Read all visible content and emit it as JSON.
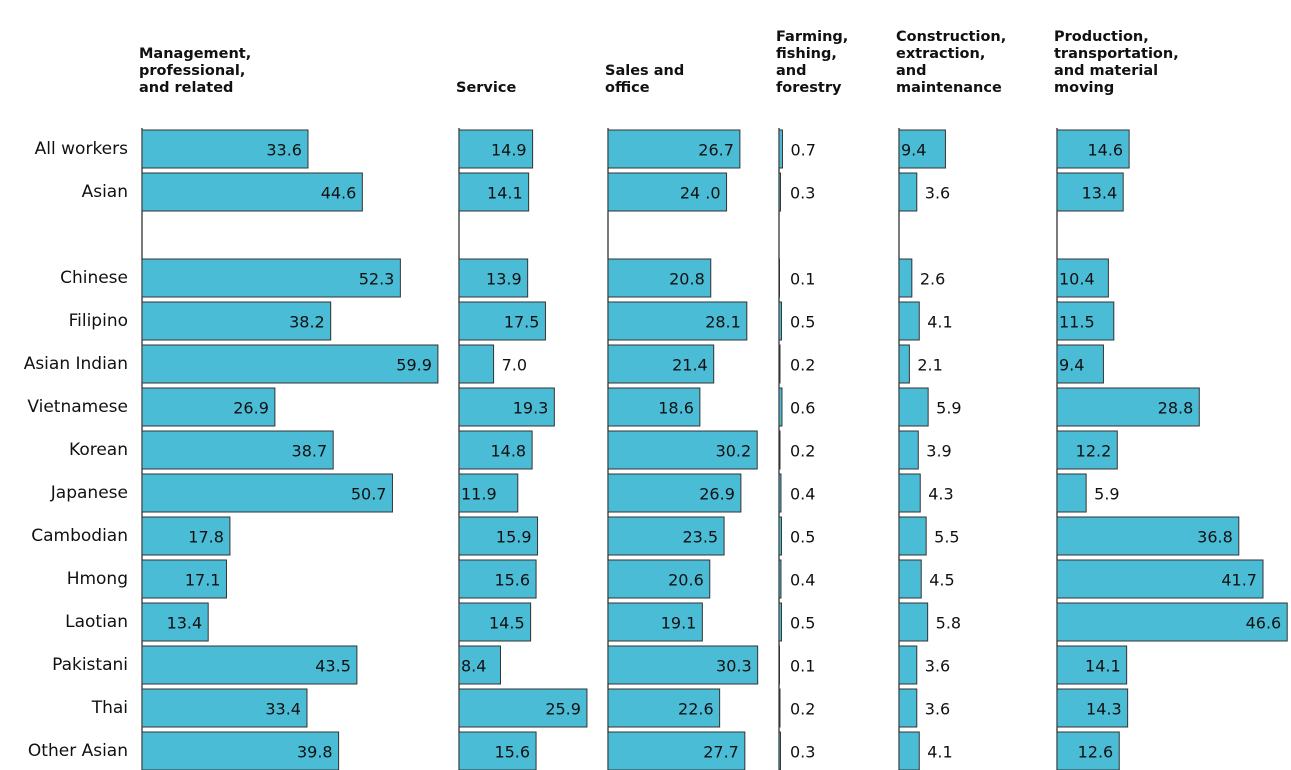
{
  "chart_data": {
    "type": "bar",
    "categories": [
      "All workers",
      "Asian",
      null,
      "Chinese",
      "Filipino",
      "Asian Indian",
      "Vietnamese",
      "Korean",
      "Japanese",
      "Cambodian",
      "Hmong",
      "Laotian",
      "Pakistani",
      "Thai",
      "Other Asian"
    ],
    "series": [
      {
        "name": [
          "Management,",
          "professional,",
          "and related"
        ],
        "color": "#4bbcd6",
        "values": [
          33.6,
          44.6,
          null,
          52.3,
          38.2,
          59.9,
          26.9,
          38.7,
          50.7,
          17.8,
          17.1,
          13.4,
          43.5,
          33.4,
          39.8
        ]
      },
      {
        "name": [
          "Service"
        ],
        "color": "#4bbcd6",
        "values": [
          14.9,
          14.1,
          null,
          13.9,
          17.5,
          7.0,
          19.3,
          14.8,
          11.9,
          15.9,
          15.6,
          14.5,
          8.4,
          25.9,
          15.6
        ],
        "value_labels": [
          "14.9",
          "14.1",
          null,
          "13.9",
          "17.5",
          "7.0",
          "19.3",
          "14.8",
          "11.9",
          "15.9",
          "15.6",
          "14.5",
          "8.4",
          "25.9",
          "15.6"
        ]
      },
      {
        "name": [
          "Sales and",
          "office"
        ],
        "color": "#4bbcd6",
        "values": [
          26.7,
          24.0,
          null,
          20.8,
          28.1,
          21.4,
          18.6,
          30.2,
          26.9,
          23.5,
          20.6,
          19.1,
          30.3,
          22.6,
          27.7
        ],
        "value_labels": [
          "26.7",
          "24 .0",
          null,
          "20.8",
          "28.1",
          "21.4",
          "18.6",
          "30.2",
          "26.9",
          "23.5",
          "20.6",
          "19.1",
          "30.3",
          "22.6",
          "27.7"
        ]
      },
      {
        "name": [
          "Farming,",
          "fishing,",
          "and",
          "forestry"
        ],
        "color": "#4bbcd6",
        "values": [
          0.7,
          0.3,
          null,
          0.1,
          0.5,
          0.2,
          0.6,
          0.2,
          0.4,
          0.5,
          0.4,
          0.5,
          0.1,
          0.2,
          0.3
        ]
      },
      {
        "name": [
          "Construction,",
          "extraction,",
          "and",
          "maintenance"
        ],
        "color": "#4bbcd6",
        "values": [
          9.4,
          3.6,
          null,
          2.6,
          4.1,
          2.1,
          5.9,
          3.9,
          4.3,
          5.5,
          4.5,
          5.8,
          3.6,
          3.6,
          4.1
        ]
      },
      {
        "name": [
          "Production,",
          "transportation,",
          "and material",
          "moving"
        ],
        "color": "#4bbcd6",
        "values": [
          14.6,
          13.4,
          null,
          10.4,
          11.5,
          9.4,
          28.8,
          12.2,
          5.9,
          36.8,
          41.7,
          46.6,
          14.1,
          14.3,
          12.6
        ]
      }
    ]
  }
}
